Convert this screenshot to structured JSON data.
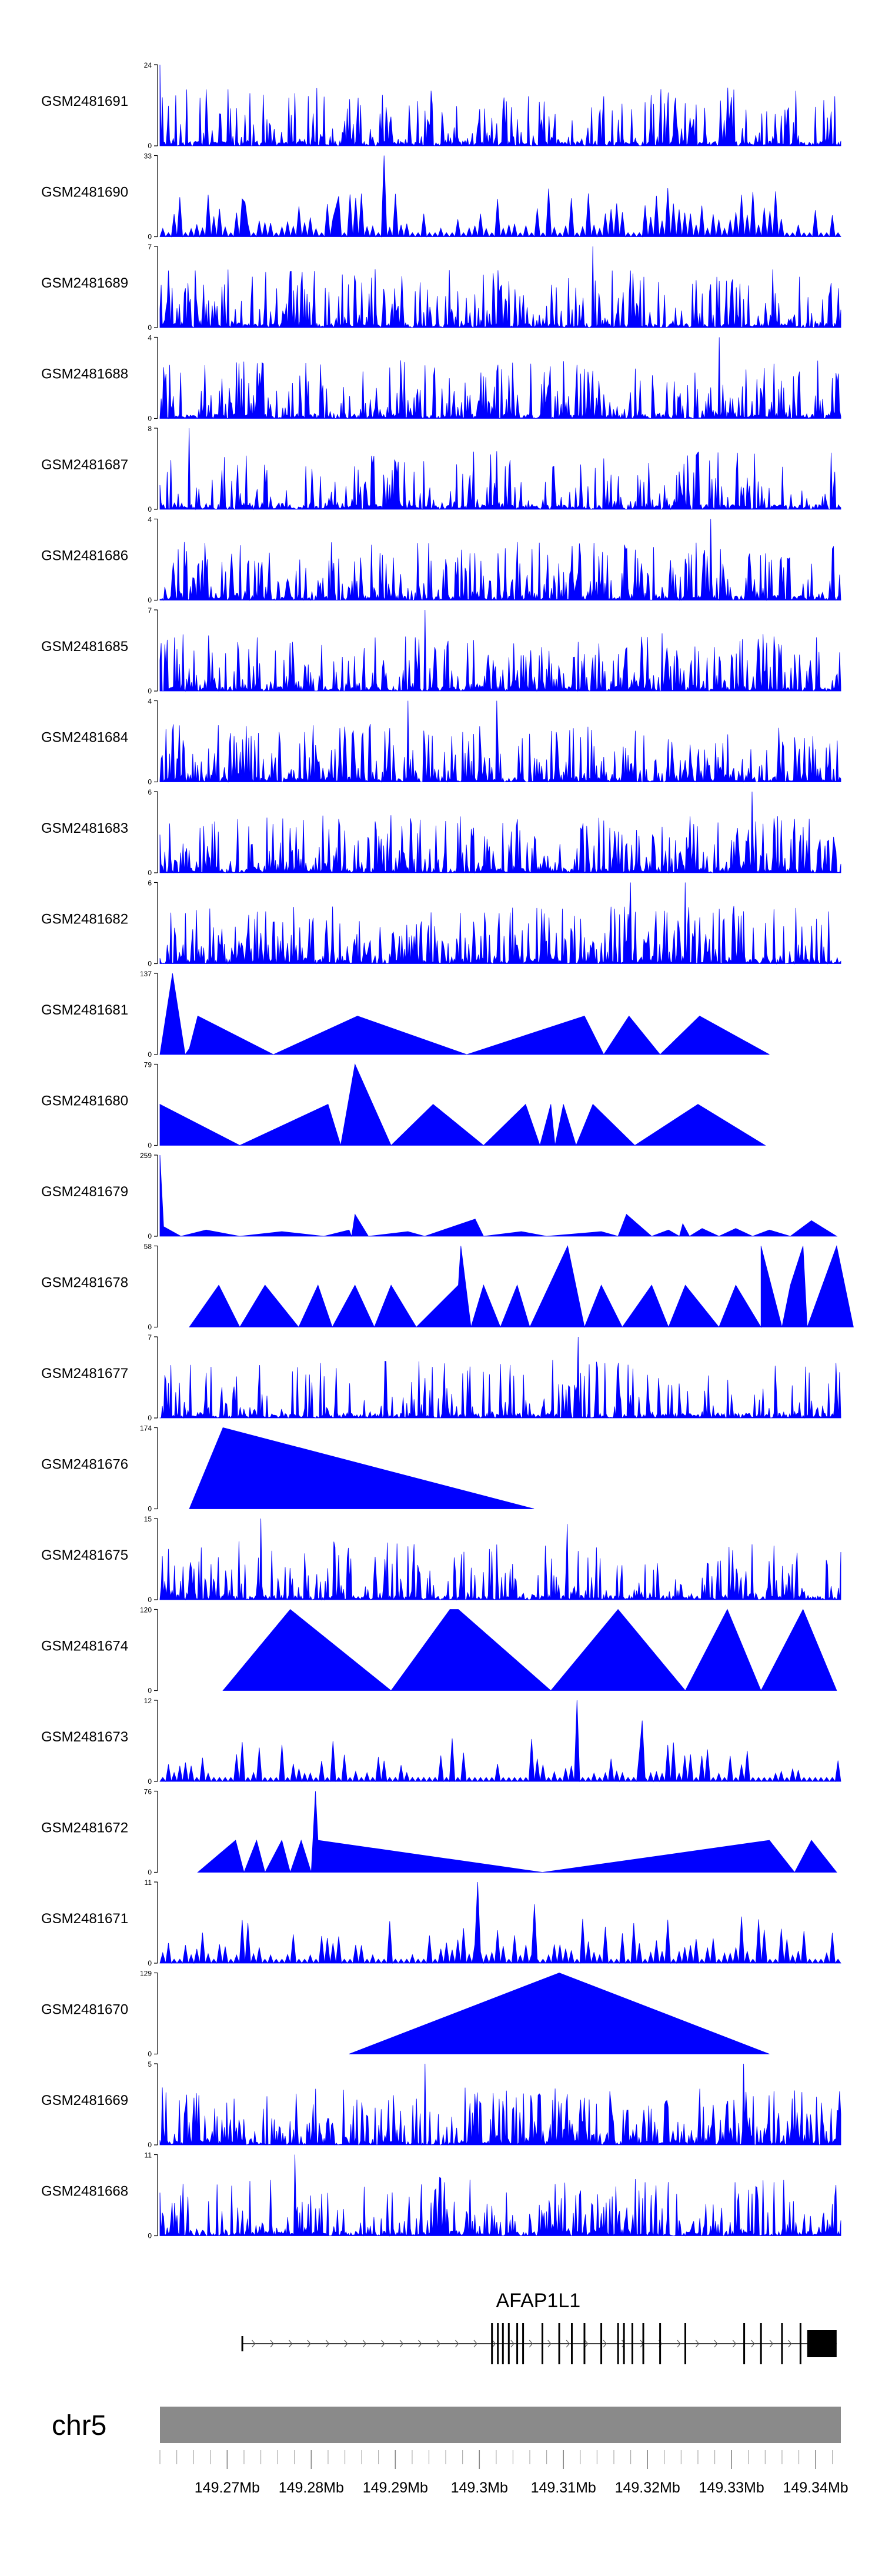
{
  "chart_data": {
    "type": "area",
    "chromosome": "chr5",
    "x_range_mb": [
      149.262,
      149.343
    ],
    "x_ticks": [
      {
        "value": 149.27,
        "label": "149.27Mb"
      },
      {
        "value": 149.28,
        "label": "149.28Mb"
      },
      {
        "value": 149.29,
        "label": "149.29Mb"
      },
      {
        "value": 149.3,
        "label": "149.3Mb"
      },
      {
        "value": 149.31,
        "label": "149.31Mb"
      },
      {
        "value": 149.32,
        "label": "149.32Mb"
      },
      {
        "value": 149.33,
        "label": "149.33Mb"
      },
      {
        "value": 149.34,
        "label": "149.34Mb"
      }
    ],
    "color": "#0000ff",
    "gene": {
      "name": "AFAP1L1",
      "start_mb": 149.2718,
      "end_mb": 149.3425,
      "strand": "+",
      "exons_mb": [
        149.2718,
        149.3015,
        149.3022,
        149.3028,
        149.3035,
        149.3045,
        149.3052,
        149.3075,
        149.3095,
        149.311,
        149.3125,
        149.3145,
        149.3165,
        149.3172,
        149.3182,
        149.3195,
        149.3215,
        149.3245,
        149.3315,
        149.3335,
        149.336,
        149.3382
      ],
      "last_exon_mb": [
        149.339,
        149.3425
      ]
    },
    "series": [
      {
        "name": "GSM2481691",
        "ymax": 24,
        "ymin_label": "0",
        "ymax_label": "24",
        "pattern": "noise",
        "seed": 91,
        "density": 0.55,
        "peaks": [
          [
            149.262,
            24
          ],
          [
            149.3205,
            15
          ]
        ]
      },
      {
        "name": "GSM2481690",
        "ymax": 33,
        "ymin_label": "0",
        "ymax_label": "33",
        "pattern": "spikes",
        "seed": 90,
        "density": 0.75,
        "peaks": [
          [
            149.2885,
            33
          ],
          [
            149.283,
            12
          ],
          [
            149.272,
            14
          ]
        ]
      },
      {
        "name": "GSM2481689",
        "ymax": 7,
        "ymin_label": "0",
        "ymax_label": "7",
        "pattern": "noise",
        "seed": 89,
        "density": 0.6,
        "peaks": [
          [
            149.3135,
            7
          ]
        ]
      },
      {
        "name": "GSM2481688",
        "ymax": 4,
        "ymin_label": "0",
        "ymax_label": "4",
        "pattern": "noise",
        "seed": 88,
        "density": 0.6,
        "peaks": [
          [
            149.3285,
            4
          ]
        ]
      },
      {
        "name": "GSM2481687",
        "ymax": 8,
        "ymin_label": "0",
        "ymax_label": "8",
        "pattern": "noise",
        "seed": 87,
        "density": 0.55,
        "peaks": [
          [
            149.2655,
            8
          ]
        ]
      },
      {
        "name": "GSM2481686",
        "ymax": 4,
        "ymin_label": "0",
        "ymax_label": "4",
        "pattern": "noise",
        "seed": 86,
        "density": 0.7,
        "peaks": [
          [
            149.3275,
            4
          ]
        ]
      },
      {
        "name": "GSM2481685",
        "ymax": 7,
        "ymin_label": "0",
        "ymax_label": "7",
        "pattern": "noise",
        "seed": 85,
        "density": 0.65,
        "peaks": [
          [
            149.2935,
            7
          ]
        ]
      },
      {
        "name": "GSM2481684",
        "ymax": 4,
        "ymin_label": "0",
        "ymax_label": "4",
        "pattern": "noise",
        "seed": 84,
        "density": 0.75,
        "peaks": [
          [
            149.2915,
            4
          ],
          [
            149.302,
            4
          ]
        ]
      },
      {
        "name": "GSM2481683",
        "ymax": 6,
        "ymin_label": "0",
        "ymax_label": "6",
        "pattern": "noise",
        "seed": 83,
        "density": 0.75,
        "peaks": [
          [
            149.3325,
            6
          ]
        ]
      },
      {
        "name": "GSM2481682",
        "ymax": 6,
        "ymin_label": "0",
        "ymax_label": "6",
        "pattern": "noise",
        "seed": 82,
        "density": 0.75,
        "peaks": [
          [
            149.318,
            6
          ],
          [
            149.3245,
            6
          ]
        ]
      },
      {
        "name": "GSM2481681",
        "ymax": 137,
        "ymin_label": "0",
        "ymax_label": "137",
        "pattern": "points",
        "points": [
          [
            149.262,
            0
          ],
          [
            149.2635,
            137
          ],
          [
            149.265,
            0
          ],
          [
            149.2655,
            10
          ],
          [
            149.2665,
            65
          ],
          [
            149.2755,
            0
          ],
          [
            149.2855,
            65
          ],
          [
            149.2985,
            0
          ],
          [
            149.3125,
            65
          ],
          [
            149.3148,
            0
          ],
          [
            149.3178,
            65
          ],
          [
            149.3215,
            0
          ],
          [
            149.3262,
            65
          ],
          [
            149.3345,
            0
          ]
        ]
      },
      {
        "name": "GSM2481680",
        "ymax": 79,
        "ymin_label": "0",
        "ymax_label": "79",
        "pattern": "points",
        "points": [
          [
            149.262,
            0
          ],
          [
            149.262,
            40
          ],
          [
            149.2715,
            0
          ],
          [
            149.282,
            40
          ],
          [
            149.2835,
            0
          ],
          [
            149.2852,
            79
          ],
          [
            149.2895,
            0
          ],
          [
            149.2945,
            40
          ],
          [
            149.3005,
            0
          ],
          [
            149.3055,
            40
          ],
          [
            149.3072,
            0
          ],
          [
            149.3085,
            40
          ],
          [
            149.309,
            0
          ],
          [
            149.31,
            40
          ],
          [
            149.3115,
            0
          ],
          [
            149.3135,
            40
          ],
          [
            149.3185,
            0
          ],
          [
            149.326,
            40
          ],
          [
            149.334,
            0
          ]
        ]
      },
      {
        "name": "GSM2481679",
        "ymax": 259,
        "ymin_label": "0",
        "ymax_label": "259",
        "pattern": "points",
        "points": [
          [
            149.262,
            0
          ],
          [
            149.262,
            259
          ],
          [
            149.2625,
            0
          ],
          [
            149.2625,
            30
          ],
          [
            149.2645,
            0
          ],
          [
            149.2675,
            20
          ],
          [
            149.2715,
            0
          ],
          [
            149.2765,
            15
          ],
          [
            149.2815,
            0
          ],
          [
            149.2845,
            20
          ],
          [
            149.2848,
            0
          ],
          [
            149.2852,
            70
          ],
          [
            149.2868,
            0
          ],
          [
            149.2915,
            15
          ],
          [
            149.2935,
            0
          ],
          [
            149.2995,
            55
          ],
          [
            149.3005,
            0
          ],
          [
            149.305,
            15
          ],
          [
            149.308,
            0
          ],
          [
            149.3145,
            15
          ],
          [
            149.3165,
            0
          ],
          [
            149.3175,
            70
          ],
          [
            149.3205,
            0
          ],
          [
            149.3225,
            20
          ],
          [
            149.3238,
            0
          ],
          [
            149.3242,
            40
          ],
          [
            149.325,
            0
          ],
          [
            149.3265,
            25
          ],
          [
            149.3285,
            0
          ],
          [
            149.3305,
            25
          ],
          [
            149.3325,
            0
          ],
          [
            149.3345,
            20
          ],
          [
            149.337,
            0
          ],
          [
            149.3395,
            50
          ],
          [
            149.3425,
            0
          ]
        ]
      },
      {
        "name": "GSM2481678",
        "ymax": 58,
        "ymin_label": "0",
        "ymax_label": "58",
        "pattern": "points",
        "points": [
          [
            149.2655,
            0
          ],
          [
            149.269,
            30
          ],
          [
            149.2715,
            0
          ],
          [
            149.2745,
            30
          ],
          [
            149.2785,
            0
          ],
          [
            149.2808,
            30
          ],
          [
            149.2825,
            0
          ],
          [
            149.2852,
            30
          ],
          [
            149.2875,
            0
          ],
          [
            149.2895,
            30
          ],
          [
            149.2925,
            0
          ],
          [
            149.2975,
            30
          ],
          [
            149.2978,
            58
          ],
          [
            149.299,
            0
          ],
          [
            149.3005,
            30
          ],
          [
            149.3025,
            0
          ],
          [
            149.3045,
            30
          ],
          [
            149.306,
            0
          ],
          [
            149.3105,
            58
          ],
          [
            149.3125,
            0
          ],
          [
            149.3145,
            30
          ],
          [
            149.317,
            0
          ],
          [
            149.3205,
            30
          ],
          [
            149.3225,
            0
          ],
          [
            149.3245,
            30
          ],
          [
            149.3285,
            0
          ],
          [
            149.3305,
            30
          ],
          [
            149.3335,
            0
          ],
          [
            149.3335,
            58
          ],
          [
            149.336,
            0
          ],
          [
            149.337,
            30
          ],
          [
            149.3385,
            58
          ],
          [
            149.339,
            0
          ],
          [
            149.3425,
            58
          ],
          [
            149.3445,
            0
          ]
        ]
      },
      {
        "name": "GSM2481677",
        "ymax": 7,
        "ymin_label": "0",
        "ymax_label": "7",
        "pattern": "noise",
        "seed": 77,
        "density": 0.5,
        "peaks": [
          [
            149.3118,
            7
          ]
        ]
      },
      {
        "name": "GSM2481676",
        "ymax": 174,
        "ymin_label": "0",
        "ymax_label": "174",
        "pattern": "points",
        "points": [
          [
            149.2655,
            0
          ],
          [
            149.2695,
            174
          ],
          [
            149.3065,
            0
          ]
        ]
      },
      {
        "name": "GSM2481675",
        "ymax": 15,
        "ymin_label": "0",
        "ymax_label": "15",
        "pattern": "noise",
        "seed": 75,
        "density": 0.55,
        "peaks": [
          [
            149.274,
            15
          ],
          [
            149.3105,
            14
          ]
        ]
      },
      {
        "name": "GSM2481674",
        "ymax": 120,
        "ymin_label": "0",
        "ymax_label": "120",
        "pattern": "points",
        "points": [
          [
            149.2695,
            0
          ],
          [
            149.2775,
            120
          ],
          [
            149.2895,
            0
          ],
          [
            149.2965,
            120
          ],
          [
            149.2975,
            120
          ],
          [
            149.3085,
            0
          ],
          [
            149.3165,
            120
          ],
          [
            149.3245,
            0
          ],
          [
            149.3295,
            120
          ],
          [
            149.3335,
            0
          ],
          [
            149.3385,
            120
          ],
          [
            149.3425,
            0
          ]
        ]
      },
      {
        "name": "GSM2481673",
        "ymax": 12,
        "ymin_label": "0",
        "ymax_label": "12",
        "pattern": "spikes",
        "seed": 73,
        "density": 0.55,
        "peaks": [
          [
            149.3115,
            12
          ],
          [
            149.3195,
            9
          ]
        ]
      },
      {
        "name": "GSM2481672",
        "ymax": 76,
        "ymin_label": "0",
        "ymax_label": "76",
        "pattern": "points",
        "points": [
          [
            149.2665,
            0
          ],
          [
            149.271,
            30
          ],
          [
            149.272,
            0
          ],
          [
            149.2735,
            30
          ],
          [
            149.2745,
            0
          ],
          [
            149.2765,
            30
          ],
          [
            149.2775,
            0
          ],
          [
            149.2788,
            30
          ],
          [
            149.28,
            0
          ],
          [
            149.2805,
            76
          ],
          [
            149.2808,
            30
          ],
          [
            149.3075,
            0
          ],
          [
            149.3345,
            30
          ],
          [
            149.3375,
            0
          ],
          [
            149.3395,
            30
          ],
          [
            149.3425,
            0
          ]
        ]
      },
      {
        "name": "GSM2481671",
        "ymax": 11,
        "ymin_label": "0",
        "ymax_label": "11",
        "pattern": "spikes",
        "seed": 71,
        "density": 0.6,
        "peaks": [
          [
            149.2998,
            11
          ],
          [
            149.3065,
            8
          ]
        ]
      },
      {
        "name": "GSM2481670",
        "ymax": 129,
        "ymin_label": "0",
        "ymax_label": "129",
        "pattern": "points",
        "points": [
          [
            149.2845,
            0
          ],
          [
            149.3095,
            129
          ],
          [
            149.3345,
            0
          ]
        ]
      },
      {
        "name": "GSM2481669",
        "ymax": 5,
        "ymin_label": "0",
        "ymax_label": "5",
        "pattern": "noise",
        "seed": 69,
        "density": 0.8,
        "peaks": [
          [
            149.2935,
            5
          ],
          [
            149.3315,
            5
          ]
        ]
      },
      {
        "name": "GSM2481668",
        "ymax": 11,
        "ymin_label": "0",
        "ymax_label": "11",
        "pattern": "noise",
        "seed": 68,
        "density": 0.6,
        "peaks": [
          [
            149.278,
            11
          ]
        ]
      }
    ]
  }
}
